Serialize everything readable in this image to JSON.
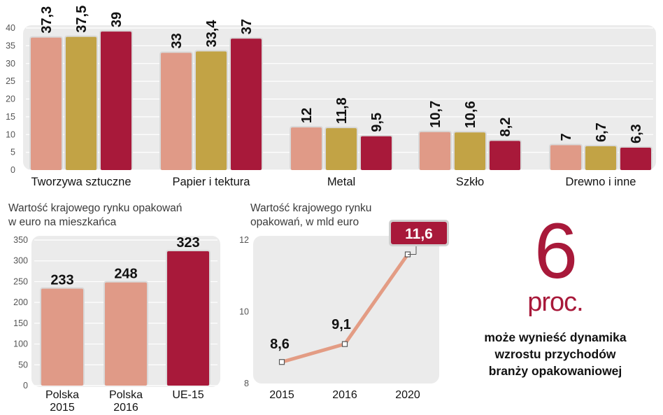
{
  "colors": {
    "panel": "#ebebeb",
    "grid": "#ffffff",
    "tick": "#555555",
    "series": [
      "#e09a87",
      "#c2a345",
      "#a8193a"
    ],
    "line": "#e39c84",
    "highlight": "#a8193a"
  },
  "chart_data": [
    {
      "type": "bar",
      "title": "",
      "xlabel": "",
      "ylabel": "",
      "ylim": [
        0,
        40
      ],
      "yticks": [
        0,
        5,
        10,
        15,
        20,
        25,
        30,
        35,
        40
      ],
      "grid": true,
      "categories": [
        "Tworzywa sztuczne",
        "Papier i tektura",
        "Metal",
        "Szkło",
        "Drewno i inne"
      ],
      "series": [
        {
          "name": "",
          "values": [
            37.3,
            33,
            12,
            10.7,
            7
          ],
          "labels": [
            "37,3",
            "33",
            "12",
            "10,7",
            "7"
          ]
        },
        {
          "name": "",
          "values": [
            37.5,
            33.4,
            11.8,
            10.6,
            6.7
          ],
          "labels": [
            "37,5",
            "33,4",
            "11,8",
            "10,6",
            "6,7"
          ]
        },
        {
          "name": "",
          "values": [
            39,
            37,
            9.5,
            8.2,
            6.3
          ],
          "labels": [
            "39",
            "37",
            "9,5",
            "8,2",
            "6,3"
          ]
        }
      ]
    },
    {
      "type": "bar",
      "title_lines": [
        "Wartość krajowego rynku opakowań",
        "w euro na mieszkańca"
      ],
      "xlabel": "",
      "ylabel": "",
      "ylim": [
        0,
        350
      ],
      "yticks": [
        0,
        50,
        100,
        150,
        200,
        250,
        300,
        350
      ],
      "categories": [
        [
          "Polska",
          "2015"
        ],
        [
          "Polska",
          "2016"
        ],
        [
          "UE-15"
        ]
      ],
      "values": [
        233,
        248,
        323
      ],
      "labels": [
        "233",
        "248",
        "323"
      ],
      "highlight_index": 2
    },
    {
      "type": "line",
      "title_lines": [
        "Wartość krajowego rynku",
        "opakowań, w mld euro"
      ],
      "xlabel": "",
      "ylabel": "",
      "ylim": [
        8,
        12
      ],
      "yticks": [
        8,
        10,
        12
      ],
      "x": [
        "2015",
        "2016",
        "2020"
      ],
      "values": [
        8.6,
        9.1,
        11.6
      ],
      "labels": [
        "8,6",
        "9,1",
        "11,6"
      ],
      "highlight_index": 2
    }
  ],
  "stat": {
    "number": "6",
    "unit": "proc.",
    "description_lines": [
      "może wynieść dynamika",
      "wzrostu przychodów",
      "branży opakowaniowej"
    ]
  }
}
